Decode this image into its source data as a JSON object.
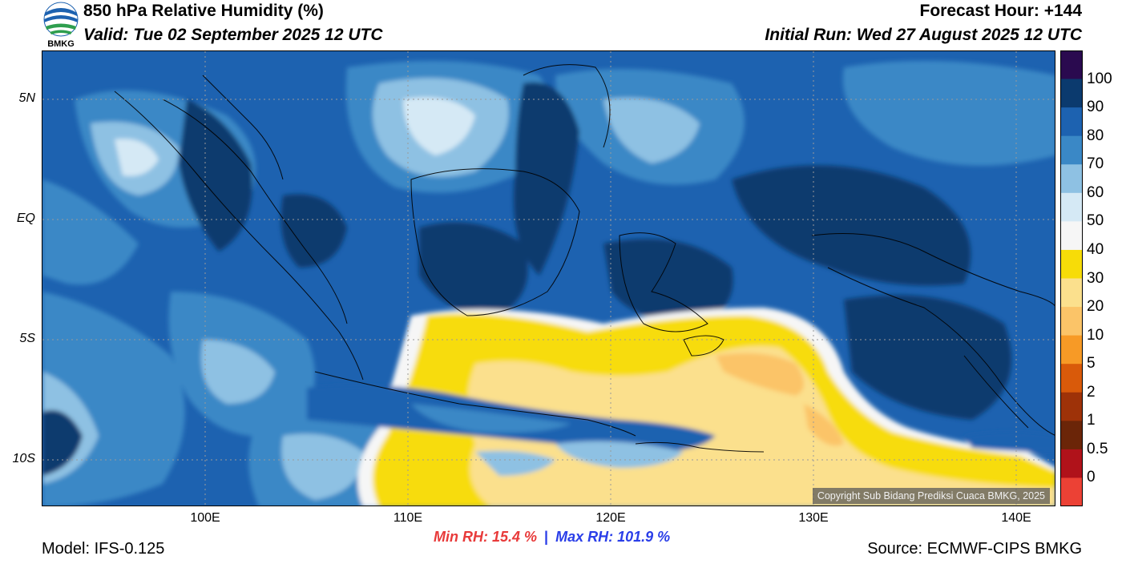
{
  "header": {
    "logo_text": "BMKG",
    "title": "850 hPa Relative Humidity (%)",
    "valid": "Valid: Tue 02 September 2025 12 UTC",
    "forecast_hour": "Forecast Hour: +144",
    "initial_run": "Initial Run: Wed 27 August 2025 12 UTC"
  },
  "map": {
    "variable": "Relative Humidity",
    "level": "850 hPa",
    "lon_range": [
      92,
      142
    ],
    "lat_range": [
      -12,
      7
    ],
    "lat_labels": [
      {
        "value": 5,
        "label": "5N"
      },
      {
        "value": 0,
        "label": "EQ"
      },
      {
        "value": -5,
        "label": "5S"
      },
      {
        "value": -10,
        "label": "10S"
      }
    ],
    "lon_labels": [
      {
        "value": 100,
        "label": "100E"
      },
      {
        "value": 110,
        "label": "110E"
      },
      {
        "value": 120,
        "label": "120E"
      },
      {
        "value": 130,
        "label": "130E"
      },
      {
        "value": 140,
        "label": "140E"
      }
    ],
    "gridlines": true,
    "copyright": "Copyright Sub Bidang Prediksi Cuaca BMKG, 2025"
  },
  "colorbar": {
    "levels": [
      {
        "label": "100",
        "color": "#2a0a4f"
      },
      {
        "label": "90",
        "color": "#0b3a6e"
      },
      {
        "label": "80",
        "color": "#1d62b0"
      },
      {
        "label": "70",
        "color": "#3a88c6"
      },
      {
        "label": "60",
        "color": "#8ec1e3"
      },
      {
        "label": "50",
        "color": "#d5e9f5"
      },
      {
        "label": "40",
        "color": "#f6f6f6"
      },
      {
        "label": "30",
        "color": "#f7dc08"
      },
      {
        "label": "20",
        "color": "#fbe08d"
      },
      {
        "label": "10",
        "color": "#fbc468"
      },
      {
        "label": "5",
        "color": "#f79a26"
      },
      {
        "label": "2",
        "color": "#d95a0a"
      },
      {
        "label": "1",
        "color": "#9e3208"
      },
      {
        "label": "0.5",
        "color": "#6b2508"
      },
      {
        "label": "0",
        "color": "#b0121a"
      },
      {
        "label": "",
        "color": "#ec4135"
      }
    ]
  },
  "stats": {
    "min_rh": "Min RH:  15.4 %",
    "separator": "|",
    "max_rh": "Max RH: 101.9 %"
  },
  "footer": {
    "model": "Model: IFS-0.125",
    "source": "Source: ECMWF-CIPS BMKG"
  },
  "chart_data": {
    "type": "heatmap",
    "title": "850 hPa Relative Humidity (%)",
    "xlabel": "",
    "ylabel": "",
    "x_range": [
      92,
      142
    ],
    "y_range": [
      -12,
      7
    ],
    "min_value": 15.4,
    "max_value": 101.9
  }
}
